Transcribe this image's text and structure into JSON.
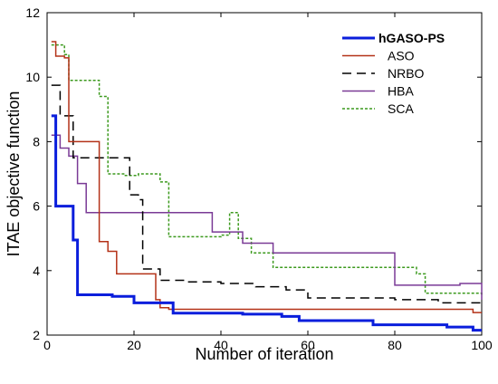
{
  "chart_data": {
    "type": "line",
    "xlabel": "Number of iteration",
    "ylabel": "ITAE objective function",
    "xlim": [
      0,
      100
    ],
    "ylim": [
      2,
      12
    ],
    "xticks": [
      0,
      20,
      40,
      60,
      80,
      100
    ],
    "yticks": [
      2,
      4,
      6,
      8,
      10,
      12
    ],
    "grid": false,
    "legend_position": "top-right",
    "series": [
      {
        "name": "hGASO-PS",
        "color": "#0a1edc",
        "dash": "solid",
        "bold": true,
        "x": [
          1,
          2,
          6,
          7,
          15,
          20,
          29,
          45,
          54,
          58,
          75,
          92,
          98,
          100
        ],
        "y": [
          8.8,
          6.0,
          4.95,
          3.25,
          3.2,
          3.0,
          2.68,
          2.65,
          2.58,
          2.45,
          2.32,
          2.25,
          2.15,
          2.15
        ]
      },
      {
        "name": "ASO",
        "color": "#b43218",
        "dash": "solid",
        "bold": false,
        "x": [
          1,
          2,
          4,
          5,
          12,
          14,
          16,
          25,
          26,
          28,
          85,
          98,
          100
        ],
        "y": [
          11.1,
          10.65,
          10.6,
          8.0,
          4.9,
          4.6,
          3.9,
          3.1,
          2.85,
          2.8,
          2.8,
          2.7,
          2.7
        ]
      },
      {
        "name": "NRBO",
        "color": "#000000",
        "dash": "dashed",
        "bold": false,
        "x": [
          1,
          3,
          6,
          13,
          19,
          21,
          22,
          26,
          32,
          40,
          48,
          55,
          60,
          80,
          90,
          100
        ],
        "y": [
          9.75,
          8.8,
          7.5,
          7.5,
          6.35,
          6.2,
          4.05,
          3.7,
          3.65,
          3.6,
          3.5,
          3.4,
          3.15,
          3.1,
          3.0,
          2.9
        ]
      },
      {
        "name": "HBA",
        "color": "#7a3a96",
        "dash": "solid",
        "bold": false,
        "x": [
          1,
          2,
          3,
          5,
          7,
          9,
          30,
          38,
          45,
          52,
          78,
          80,
          95,
          100
        ],
        "y": [
          8.2,
          8.2,
          7.8,
          7.55,
          6.7,
          5.8,
          5.8,
          5.2,
          4.85,
          4.55,
          4.55,
          3.55,
          3.6,
          3.1
        ]
      },
      {
        "name": "SCA",
        "color": "#3c9a1e",
        "dash": "dotted",
        "bold": false,
        "x": [
          1,
          4,
          5,
          10,
          12,
          14,
          18,
          21,
          26,
          28,
          30,
          40,
          42,
          44,
          47,
          52,
          80,
          85,
          87,
          98,
          100
        ],
        "y": [
          11.0,
          10.7,
          9.9,
          9.9,
          9.4,
          7.0,
          6.95,
          7.0,
          6.75,
          5.05,
          5.05,
          5.1,
          5.8,
          5.0,
          4.55,
          4.1,
          4.1,
          3.9,
          3.3,
          3.3,
          3.2
        ]
      }
    ]
  }
}
